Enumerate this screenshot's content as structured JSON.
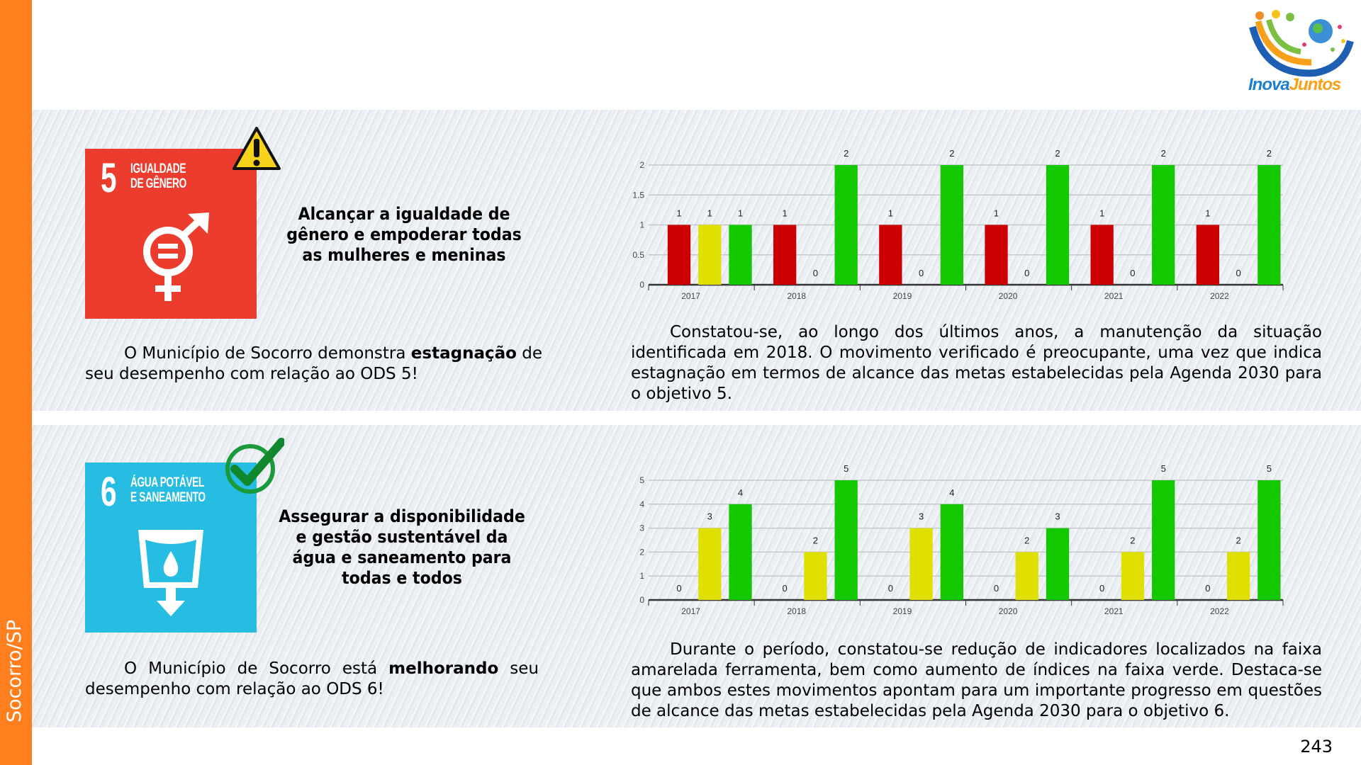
{
  "sidebar": {
    "label": "Socorro/SP"
  },
  "logo": {
    "text_a": "Inova",
    "text_b": "Juntos"
  },
  "page_number": "243",
  "sections": [
    {
      "sdg_number": "5",
      "sdg_title_1": "IGUALDADE",
      "sdg_title_2": "DE GÊNERO",
      "status_icon": "warning-icon",
      "goal": "Alcançar a igualdade de gênero e empoderar todas as mulheres e meninas",
      "summary_pre": "O Município de Socorro demonstra ",
      "summary_bold": "estagnação",
      "summary_post": " de seu desempenho com relação ao ODS 5!",
      "analysis": "Constatou-se, ao longo dos últimos anos, a manutenção da situação identificada em 2018. O movimento verificado é preocupante, uma vez que indica estagnação em termos de alcance das metas estabelecidas pela Agenda 2030 para o objetivo 5."
    },
    {
      "sdg_number": "6",
      "sdg_title_1": "ÁGUA POTÁVEL",
      "sdg_title_2": "E SANEAMENTO",
      "status_icon": "checkmark-icon",
      "goal": "Assegurar a disponibilidade e gestão sustentável da água e saneamento para todas e todos",
      "summary_pre": "O Município de Socorro está ",
      "summary_bold": "melhorando",
      "summary_post": " seu desempenho com relação ao ODS 6!",
      "analysis": "Durante o período, constatou-se redução de indicadores localizados na faixa amarelada ferramenta, bem como aumento de índices na faixa verde. Destaca-se que ambos estes movimentos apontam para um importante progresso em questões de alcance das metas estabelecidas pela Agenda 2030 para o objetivo 6."
    }
  ],
  "colors": {
    "red": "#CC0000",
    "yellow": "#E0E000",
    "green": "#14C800",
    "sdg5": "#EB3C2D",
    "sdg6": "#27BDE2"
  },
  "chart_data": [
    {
      "type": "bar",
      "categories": [
        "2017",
        "2018",
        "2019",
        "2020",
        "2021",
        "2022"
      ],
      "ylim": [
        0,
        2
      ],
      "yticks": [
        "0",
        "0.5",
        "1",
        "1.5",
        "2"
      ],
      "ytick_values": [
        0,
        0.5,
        1,
        1.5,
        2
      ],
      "grid": true,
      "series": [
        {
          "name": "red",
          "values": [
            1,
            1,
            1,
            1,
            1,
            1
          ]
        },
        {
          "name": "yellow",
          "values": [
            1,
            0,
            0,
            0,
            0,
            0
          ]
        },
        {
          "name": "green",
          "values": [
            1,
            2,
            2,
            2,
            2,
            2
          ]
        }
      ]
    },
    {
      "type": "bar",
      "categories": [
        "2017",
        "2018",
        "2019",
        "2020",
        "2021",
        "2022"
      ],
      "ylim": [
        0,
        5
      ],
      "yticks": [
        "0",
        "1",
        "2",
        "3",
        "4",
        "5"
      ],
      "ytick_values": [
        0,
        1,
        2,
        3,
        4,
        5
      ],
      "grid": true,
      "series": [
        {
          "name": "red",
          "values": [
            0,
            0,
            0,
            0,
            0,
            0
          ]
        },
        {
          "name": "yellow",
          "values": [
            3,
            2,
            3,
            2,
            2,
            2
          ]
        },
        {
          "name": "green",
          "values": [
            4,
            5,
            4,
            3,
            5,
            5
          ]
        }
      ]
    }
  ]
}
